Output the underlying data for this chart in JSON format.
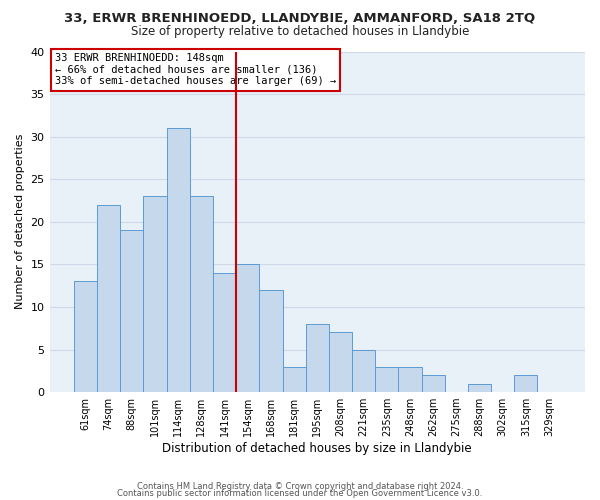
{
  "title": "33, ERWR BRENHINOEDD, LLANDYBIE, AMMANFORD, SA18 2TQ",
  "subtitle": "Size of property relative to detached houses in Llandybie",
  "xlabel": "Distribution of detached houses by size in Llandybie",
  "ylabel": "Number of detached properties",
  "bar_labels": [
    "61sqm",
    "74sqm",
    "88sqm",
    "101sqm",
    "114sqm",
    "128sqm",
    "141sqm",
    "154sqm",
    "168sqm",
    "181sqm",
    "195sqm",
    "208sqm",
    "221sqm",
    "235sqm",
    "248sqm",
    "262sqm",
    "275sqm",
    "288sqm",
    "302sqm",
    "315sqm",
    "329sqm"
  ],
  "bar_values": [
    13,
    22,
    19,
    23,
    31,
    23,
    14,
    15,
    12,
    3,
    8,
    7,
    5,
    3,
    3,
    2,
    0,
    1,
    0,
    2,
    0
  ],
  "bar_color": "#c5d8ec",
  "bar_edge_color": "#5b9bd5",
  "background_color": "#ffffff",
  "plot_bg_color": "#e8f0f8",
  "grid_color": "#d0d8e8",
  "vline_x": 6.5,
  "vline_color": "#cc0000",
  "annotation_text": "33 ERWR BRENHINOEDD: 148sqm\n← 66% of detached houses are smaller (136)\n33% of semi-detached houses are larger (69) →",
  "annotation_box_color": "#ffffff",
  "annotation_box_edge": "#cc0000",
  "ylim": [
    0,
    40
  ],
  "yticks": [
    0,
    5,
    10,
    15,
    20,
    25,
    30,
    35,
    40
  ],
  "footer1": "Contains HM Land Registry data © Crown copyright and database right 2024.",
  "footer2": "Contains public sector information licensed under the Open Government Licence v3.0."
}
